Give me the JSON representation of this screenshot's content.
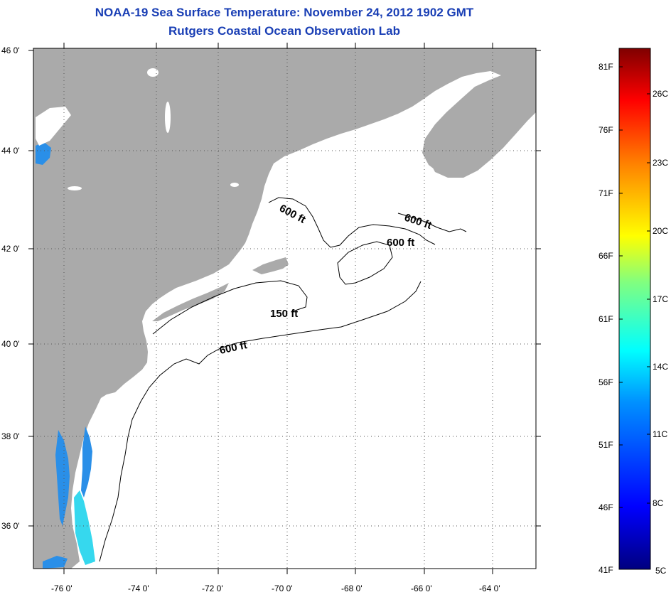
{
  "title": "NOAA-19 Sea Surface Temperature:  November 24, 2012 1902 GMT",
  "subtitle": "Rutgers Coastal Ocean Observation Lab",
  "latitude_labels": [
    "46 0'",
    "44 0'",
    "42 0'",
    "40 0'",
    "38 0'",
    "36 0'"
  ],
  "longitude_labels": [
    "-76 0'",
    "-74 0'",
    "-72 0'",
    "-70 0'",
    "-68 0'",
    "-66 0'",
    "-64 0'"
  ],
  "contour_labels": [
    "600 ft",
    "600 ft",
    "600 ft",
    "150 ft",
    "600 ft"
  ],
  "colorbar": {
    "fahrenheit_labels": [
      "81F",
      "76F",
      "71F",
      "66F",
      "61F",
      "56F",
      "51F",
      "46F",
      "41F"
    ],
    "celsius_labels": [
      "26C",
      "23C",
      "20C",
      "17C",
      "14C",
      "11C",
      "8C",
      "5C"
    ]
  },
  "colors": {
    "title": "#1a3fb5",
    "land": "#aaaaaa",
    "sea": "#ffffff",
    "cool_water": "#2a8fe8",
    "warm_water": "#36d8ee"
  }
}
